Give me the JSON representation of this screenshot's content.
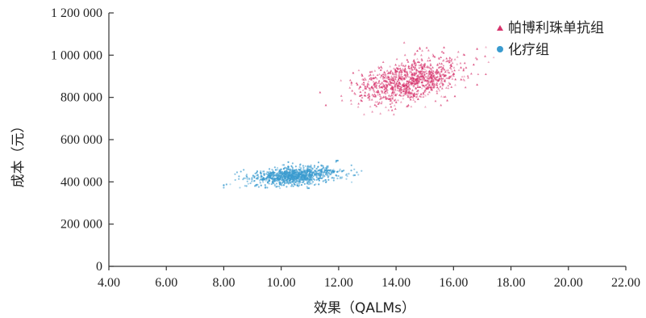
{
  "chart_data": {
    "type": "scatter",
    "title": "",
    "xlabel": "效果（QALMs）",
    "ylabel": "成本（元）",
    "xlim": [
      4,
      22
    ],
    "ylim": [
      0,
      1200000
    ],
    "x_ticks": [
      4,
      6,
      8,
      10,
      12,
      14,
      16,
      18,
      20,
      22
    ],
    "x_tick_labels": [
      "4.00",
      "6.00",
      "8.00",
      "10.00",
      "12.00",
      "14.00",
      "16.00",
      "18.00",
      "20.00",
      "22.00"
    ],
    "y_ticks": [
      0,
      200000,
      400000,
      600000,
      800000,
      1000000,
      1200000
    ],
    "y_tick_labels": [
      "0",
      "200 000",
      "400 000",
      "600 000",
      "800 000",
      "1 000 000",
      "1 200 000"
    ],
    "grid": false,
    "legend_position": "top-right",
    "series": [
      {
        "name": "帕博利珠单抗组",
        "marker": "triangle",
        "color": "#d6336c",
        "point_count": 1000,
        "x_mean": 14.5,
        "x_sd": 0.9,
        "x_range": [
          11.0,
          18.5
        ],
        "y_mean": 880000,
        "y_sd": 55000,
        "y_range": [
          720000,
          1060000
        ],
        "correlation": 0.4
      },
      {
        "name": "化疗组",
        "marker": "circle",
        "color": "#3a9bcf",
        "point_count": 1000,
        "x_mean": 10.5,
        "x_sd": 0.75,
        "x_range": [
          8.0,
          13.0
        ],
        "y_mean": 430000,
        "y_sd": 22000,
        "y_range": [
          370000,
          510000
        ],
        "correlation": 0.3
      }
    ]
  }
}
